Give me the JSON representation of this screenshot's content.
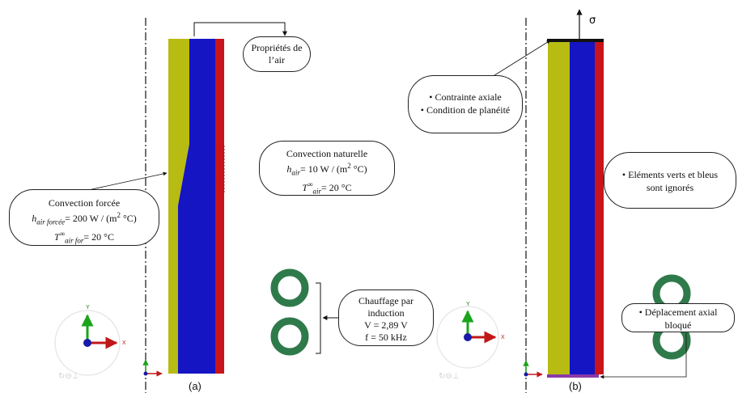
{
  "panel_a": {
    "caption": "(a)",
    "air_props": {
      "line1": "Propriétés de",
      "line2": "l’air"
    },
    "natural_convection": {
      "title": "Convection naturelle",
      "h_symbol": "h",
      "h_sub": "air",
      "h_value": "= 10 W / (m",
      "h_exp": "2",
      "h_unit_end": " °C)",
      "t_symbol": "T",
      "t_sub": "air",
      "t_sup": "∞",
      "t_value": "= 20 °C"
    },
    "forced_convection": {
      "title": "Convection forcée",
      "h_symbol": "h",
      "h_sub": "air forcée",
      "h_value": "= 200 W / (m",
      "h_exp": "2",
      "h_unit_end": " °C)",
      "t_symbol": "T",
      "t_sub": "air for",
      "t_sup": "∞",
      "t_value": "= 20 °C"
    },
    "induction": {
      "line1": "Chauffage par",
      "line2": "induction",
      "line3": "V = 2,89 V",
      "line4": "f = 50 kHz"
    }
  },
  "panel_b": {
    "caption": "(b)",
    "sigma": "σ",
    "stress_box": {
      "item1": "Contrainte axiale",
      "item2": "Condition de planéité"
    },
    "ignored_box": {
      "line1": "Eléments verts et bleus",
      "line2": "sont ignorés"
    },
    "displacement_box": {
      "line1": "Déplacement axial",
      "line2": "bloqué"
    }
  },
  "axes": {
    "y_label": "Y",
    "x_label": "X"
  },
  "colors": {
    "yellow_layer": "#b8bb12",
    "blue_layer": "#1515c4",
    "red_layer": "#c8141a",
    "coil": "#2f7a4a",
    "axis_green": "#1aa41a",
    "axis_red": "#c01818",
    "axis_blue": "#1a1aa8",
    "base_purple": "#8a3aa8"
  }
}
